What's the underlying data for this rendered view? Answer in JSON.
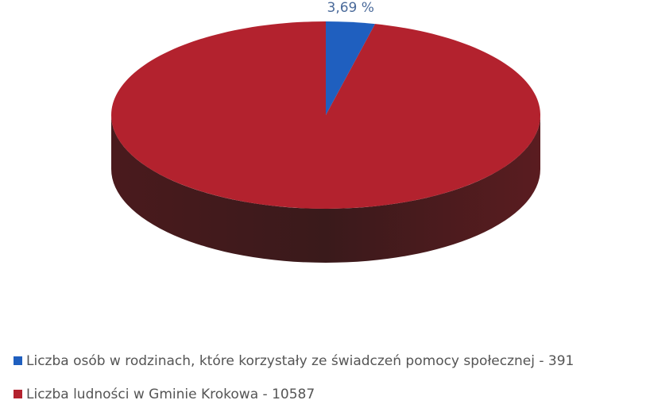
{
  "chart_data": {
    "type": "pie",
    "categories": [
      "Liczba osób w rodzinach, które korzystały ze świadczeń  pomocy społecznej - 391",
      "Liczba ludności w Gminie Krokowa - 10587"
    ],
    "values": [
      3.69,
      96.31
    ],
    "value_labels": [
      "3,69 %",
      null
    ],
    "colors": [
      "#1f5fbf",
      "#b3222e"
    ],
    "legend": "bottom"
  }
}
